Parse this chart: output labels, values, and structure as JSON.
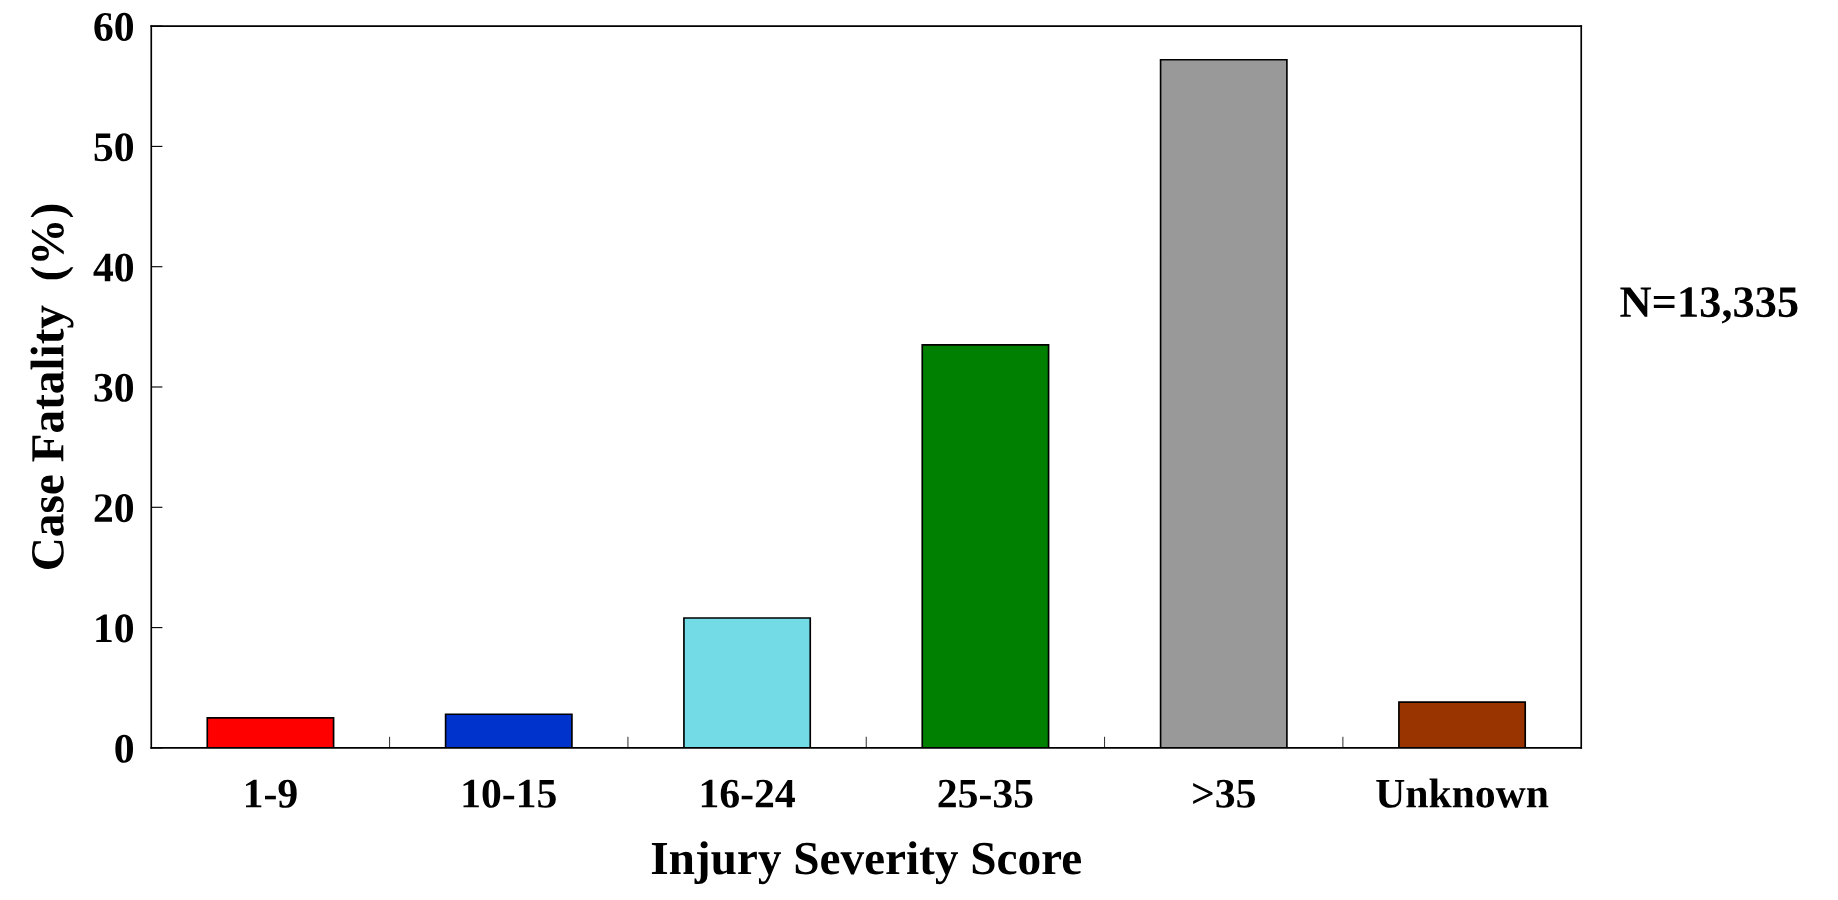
{
  "chart_data": {
    "type": "bar",
    "xlabel": "Injury Severity Score",
    "ylabel": "Case Fatality  (%)",
    "categories": [
      "1-9",
      "10-15",
      "16-24",
      "25-35",
      ">35",
      "Unknown"
    ],
    "values": [
      2.5,
      2.8,
      10.8,
      33.5,
      57.2,
      3.8
    ],
    "colors": [
      "#ff0000",
      "#0033cc",
      "#73dbe6",
      "#008000",
      "#999999",
      "#993300"
    ],
    "ylim": [
      0,
      60
    ],
    "yticks": [
      0,
      10,
      20,
      30,
      40,
      50,
      60
    ],
    "grid": false,
    "annotations": [
      "N=13,335"
    ]
  }
}
